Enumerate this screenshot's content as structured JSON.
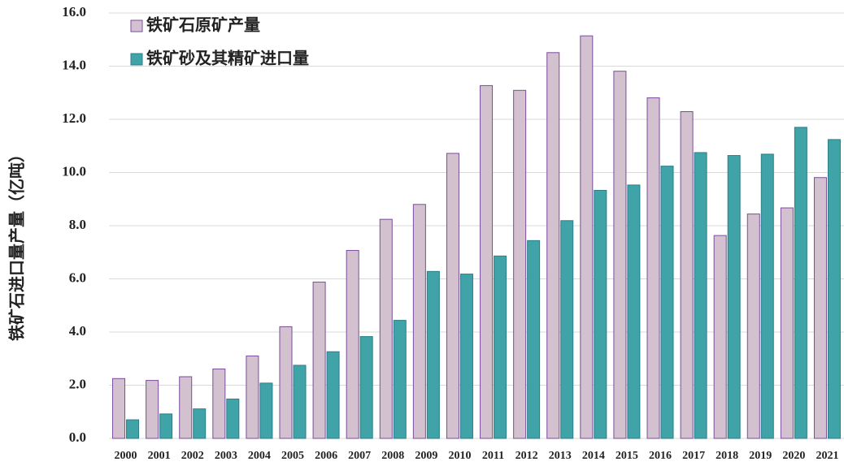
{
  "chart_data": {
    "type": "bar",
    "y_label": "铁矿石进口量产量（亿吨）",
    "categories": [
      "2000",
      "2001",
      "2002",
      "2003",
      "2004",
      "2005",
      "2006",
      "2007",
      "2008",
      "2009",
      "2010",
      "2011",
      "2012",
      "2013",
      "2014",
      "2015",
      "2016",
      "2017",
      "2018",
      "2019",
      "2020",
      "2021"
    ],
    "series": [
      {
        "name": "铁矿石原矿产量",
        "color": "#d3c1cf",
        "stroke": "#7a4d9c",
        "values": [
          2.25,
          2.18,
          2.32,
          2.61,
          3.1,
          4.2,
          5.88,
          7.07,
          8.24,
          8.8,
          10.72,
          13.27,
          13.09,
          14.51,
          15.14,
          13.81,
          12.81,
          12.29,
          7.63,
          8.44,
          8.67,
          9.81
        ]
      },
      {
        "name": "铁矿砂及其精矿进口量",
        "color": "#3fa3a8",
        "stroke": "#2b7f88",
        "values": [
          0.7,
          0.92,
          1.11,
          1.48,
          2.08,
          2.75,
          3.26,
          3.83,
          4.44,
          6.28,
          6.18,
          6.86,
          7.44,
          8.19,
          9.33,
          9.53,
          10.24,
          10.75,
          10.64,
          10.69,
          11.7,
          11.24
        ]
      }
    ],
    "ylim": [
      0,
      16
    ],
    "yticks": [
      {
        "value": 0,
        "label": "0.0"
      },
      {
        "value": 2,
        "label": "2.0"
      },
      {
        "value": 4,
        "label": "4.0"
      },
      {
        "value": 6,
        "label": "6.0"
      },
      {
        "value": 8,
        "label": "8.0"
      },
      {
        "value": 10,
        "label": "10.0"
      },
      {
        "value": 12,
        "label": "12.0"
      },
      {
        "value": 14,
        "label": "14.0"
      },
      {
        "value": 16,
        "label": "16.0"
      }
    ],
    "grid": true,
    "legend": "upper left"
  }
}
